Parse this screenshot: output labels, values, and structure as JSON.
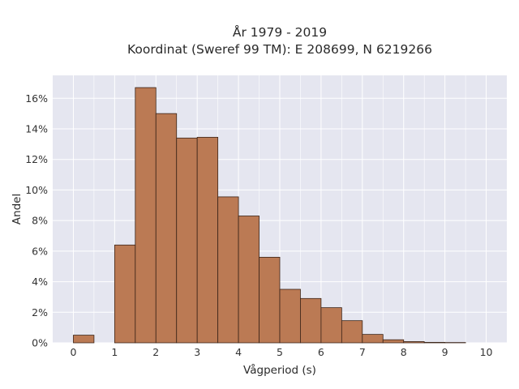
{
  "chart_data": {
    "type": "bar",
    "title": [
      "År 1979 - 2019",
      "Koordinat (Sweref 99 TM): E 208699, N 6219266"
    ],
    "xlabel": "Vågperiod (s)",
    "ylabel": "Andel",
    "xlim": [
      -0.5,
      10.5
    ],
    "ylim": [
      0,
      0.175
    ],
    "xticks": [
      0,
      1,
      2,
      3,
      4,
      5,
      6,
      7,
      8,
      9,
      10
    ],
    "xtick_labels": [
      "0",
      "1",
      "2",
      "3",
      "4",
      "5",
      "6",
      "7",
      "8",
      "9",
      "10"
    ],
    "yticks": [
      0,
      0.02,
      0.04,
      0.06,
      0.08,
      0.1,
      0.12,
      0.14,
      0.16
    ],
    "ytick_labels": [
      "0%",
      "2%",
      "4%",
      "6%",
      "8%",
      "10%",
      "12%",
      "14%",
      "16%"
    ],
    "bin_width": 0.5,
    "bins": [
      {
        "start": 0.0,
        "value": 0.005
      },
      {
        "start": 0.5,
        "value": 0.0
      },
      {
        "start": 1.0,
        "value": 0.064
      },
      {
        "start": 1.5,
        "value": 0.167
      },
      {
        "start": 2.0,
        "value": 0.15
      },
      {
        "start": 2.5,
        "value": 0.134
      },
      {
        "start": 3.0,
        "value": 0.1345
      },
      {
        "start": 3.5,
        "value": 0.0955
      },
      {
        "start": 4.0,
        "value": 0.083
      },
      {
        "start": 4.5,
        "value": 0.056
      },
      {
        "start": 5.0,
        "value": 0.035
      },
      {
        "start": 5.5,
        "value": 0.029
      },
      {
        "start": 6.0,
        "value": 0.023
      },
      {
        "start": 6.5,
        "value": 0.0145
      },
      {
        "start": 7.0,
        "value": 0.0055
      },
      {
        "start": 7.5,
        "value": 0.002
      },
      {
        "start": 8.0,
        "value": 0.0008
      },
      {
        "start": 8.5,
        "value": 0.0003
      },
      {
        "start": 9.0,
        "value": 0.0002
      },
      {
        "start": 9.5,
        "value": 0.0
      }
    ],
    "grid": true,
    "colors": {
      "bar_fill": "#bb7a54",
      "bar_edge": "#3b2418",
      "plot_background": "#e5e6f0",
      "grid": "#ffffff"
    }
  }
}
